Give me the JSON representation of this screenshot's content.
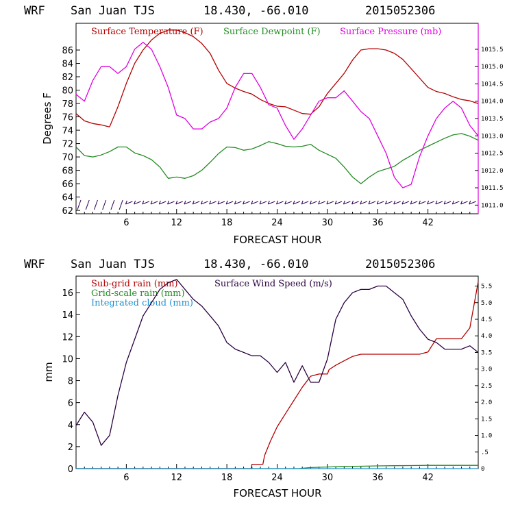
{
  "colors": {
    "temperature": "#b40000",
    "dewpoint": "#228b22",
    "pressure": "#e000e0",
    "wind_barb": "#3a0a5a",
    "subgrid_rain": "#b40000",
    "gridscale_rain": "#228b22",
    "cloud": "#1e8fd0",
    "wind_speed": "#2a0040"
  },
  "top": {
    "header": {
      "model": "WRF",
      "site": "San Juan TJS",
      "coords": "18.430, -66.010",
      "run": "2015052306"
    },
    "xlabel": "FORECAST HOUR",
    "ylabel": "Degrees F",
    "legend": {
      "temp": "Surface Temperature (F)",
      "dew": "Surface Dewpoint (F)",
      "pres": "Surface Pressure (mb)"
    }
  },
  "bottom": {
    "header": {
      "model": "WRF",
      "site": "San Juan TJS",
      "coords": "18.430, -66.010",
      "run": "2015052306"
    },
    "xlabel": "FORECAST HOUR",
    "ylabel": "mm",
    "legend": {
      "subgrid": "Sub-grid rain (mm)",
      "grid": "Grid-scale rain (mm)",
      "cloud": "Integrated cloud (mm)",
      "wind": "Surface Wind Speed (m/s)"
    }
  },
  "chart_data": [
    {
      "type": "line",
      "x_ticks": [
        "6",
        "12",
        "18",
        "24",
        "30",
        "36",
        "42"
      ],
      "xlim": [
        0,
        48
      ],
      "ylim": [
        61.5,
        90
      ],
      "y_ticks": [
        "62",
        "64",
        "66",
        "68",
        "70",
        "72",
        "74",
        "76",
        "78",
        "80",
        "82",
        "84",
        "86"
      ],
      "y2lim": [
        1010.75,
        1016.25
      ],
      "y2_ticks": [
        "1011.0",
        "1011.5",
        "1012.0",
        "1012.5",
        "1013.0",
        "1013.5",
        "1014.0",
        "1014.5",
        "1015.0",
        "1015.5"
      ],
      "series": [
        {
          "name": "Surface Temperature (F)",
          "axis": "left",
          "x": [
            0,
            1,
            2,
            3,
            4,
            5,
            6,
            7,
            8,
            9,
            10,
            11,
            12,
            13,
            14,
            15,
            16,
            17,
            18,
            19,
            20,
            21,
            22,
            23,
            24,
            25,
            26,
            27,
            28,
            29,
            30,
            31,
            32,
            33,
            34,
            35,
            36,
            37,
            38,
            39,
            40,
            41,
            42,
            43,
            44,
            45,
            46,
            47,
            48
          ],
          "y": [
            76.5,
            75.4,
            75.0,
            74.8,
            74.5,
            77.5,
            81.0,
            84.0,
            86.0,
            87.5,
            88.5,
            89.0,
            89.0,
            88.6,
            88.0,
            87.0,
            85.5,
            83.0,
            81.0,
            80.3,
            79.8,
            79.4,
            78.6,
            78.0,
            77.6,
            77.5,
            77.0,
            76.5,
            76.4,
            77.5,
            79.5,
            81.0,
            82.5,
            84.5,
            86.0,
            86.2,
            86.2,
            86.0,
            85.5,
            84.6,
            83.2,
            81.8,
            80.4,
            79.8,
            79.5,
            79.0,
            78.6,
            78.4,
            78.0
          ]
        },
        {
          "name": "Surface Dewpoint (F)",
          "axis": "left",
          "x": [
            0,
            1,
            2,
            3,
            4,
            5,
            6,
            7,
            8,
            9,
            10,
            11,
            12,
            13,
            14,
            15,
            16,
            17,
            18,
            19,
            20,
            21,
            22,
            23,
            24,
            25,
            26,
            27,
            28,
            29,
            30,
            31,
            32,
            33,
            34,
            35,
            36,
            37,
            38,
            39,
            40,
            41,
            42,
            43,
            44,
            45,
            46,
            47,
            48
          ],
          "y": [
            71.5,
            70.2,
            70.0,
            70.3,
            70.8,
            71.5,
            71.5,
            70.6,
            70.2,
            69.6,
            68.5,
            66.8,
            67.0,
            66.8,
            67.2,
            68.0,
            69.2,
            70.5,
            71.5,
            71.4,
            71.0,
            71.2,
            71.7,
            72.3,
            72.0,
            71.6,
            71.5,
            71.6,
            71.9,
            71.0,
            70.4,
            69.8,
            68.5,
            67.0,
            66.0,
            67.0,
            67.8,
            68.2,
            68.6,
            69.5,
            70.2,
            71.0,
            71.6,
            72.2,
            72.8,
            73.3,
            73.5,
            73.1,
            72.5
          ]
        },
        {
          "name": "Surface Pressure (mb)",
          "axis": "right",
          "x": [
            0,
            1,
            2,
            3,
            4,
            5,
            6,
            7,
            8,
            9,
            10,
            11,
            12,
            13,
            14,
            15,
            16,
            17,
            18,
            19,
            20,
            21,
            22,
            23,
            24,
            25,
            26,
            27,
            28,
            29,
            30,
            31,
            32,
            33,
            34,
            35,
            36,
            37,
            38,
            39,
            40,
            41,
            42,
            43,
            44,
            45,
            46,
            47,
            48
          ],
          "y": [
            1014.2,
            1014.0,
            1014.6,
            1015.0,
            1015.0,
            1014.8,
            1015.0,
            1015.5,
            1015.7,
            1015.5,
            1015.0,
            1014.4,
            1013.6,
            1013.5,
            1013.2,
            1013.2,
            1013.4,
            1013.5,
            1013.8,
            1014.4,
            1014.8,
            1014.8,
            1014.4,
            1013.9,
            1013.8,
            1013.3,
            1012.9,
            1013.2,
            1013.6,
            1014.0,
            1014.1,
            1014.1,
            1014.3,
            1014.0,
            1013.7,
            1013.5,
            1013.0,
            1012.5,
            1011.8,
            1011.5,
            1011.6,
            1012.4,
            1013.0,
            1013.5,
            1013.8,
            1014.0,
            1013.8,
            1013.3,
            1013.0
          ]
        }
      ],
      "wind_barbs_hours": [
        0,
        1,
        2,
        3,
        4,
        5,
        6,
        7,
        8,
        9,
        10,
        11,
        12,
        13,
        14,
        15,
        16,
        17,
        18,
        19,
        20,
        21,
        22,
        23,
        24,
        25,
        26,
        27,
        28,
        29,
        30,
        31,
        32,
        33,
        34,
        35,
        36,
        37,
        38,
        39,
        40,
        41,
        42,
        43,
        44,
        45,
        46,
        47
      ]
    },
    {
      "type": "line",
      "x_ticks": [
        "6",
        "12",
        "18",
        "24",
        "30",
        "36",
        "42"
      ],
      "xlim": [
        0,
        48
      ],
      "ylim": [
        0,
        17.5
      ],
      "y_ticks": [
        "0",
        "2",
        "4",
        "6",
        "8",
        "10",
        "12",
        "14",
        "16"
      ],
      "y2lim": [
        0,
        5.8
      ],
      "y2_ticks": [
        "0",
        ".5",
        "1.0",
        "1.5",
        "2.0",
        "2.5",
        "3.0",
        "3.5",
        "4.0",
        "4.5",
        "5.0",
        "5.5"
      ],
      "series": [
        {
          "name": "Sub-grid rain (mm)",
          "axis": "left",
          "x": [
            0,
            20.9,
            21,
            22.3,
            22.5,
            23.2,
            24,
            25,
            26,
            27,
            28,
            29,
            30,
            30.2,
            31,
            32,
            33,
            34,
            35,
            36,
            37,
            38,
            39,
            40,
            41,
            42,
            43,
            44,
            45,
            46,
            47,
            48
          ],
          "y": [
            0,
            0,
            0.4,
            0.4,
            1.2,
            2.5,
            3.8,
            5.0,
            6.2,
            7.4,
            8.4,
            8.6,
            8.6,
            9.0,
            9.4,
            9.8,
            10.2,
            10.4,
            10.4,
            10.4,
            10.4,
            10.4,
            10.4,
            10.4,
            10.4,
            10.6,
            11.8,
            11.8,
            11.8,
            11.8,
            12.8,
            17.0
          ]
        },
        {
          "name": "Grid-scale rain (mm)",
          "axis": "left",
          "x": [
            0,
            26.5,
            28,
            30,
            32,
            34,
            36,
            38,
            40,
            42,
            44,
            46,
            48
          ],
          "y": [
            0,
            0,
            0.1,
            0.15,
            0.2,
            0.22,
            0.25,
            0.27,
            0.28,
            0.3,
            0.3,
            0.3,
            0.3
          ]
        },
        {
          "name": "Integrated cloud (mm)",
          "axis": "left",
          "x": [
            0,
            48
          ],
          "y": [
            0,
            0
          ]
        },
        {
          "name": "Surface Wind Speed (m/s)",
          "axis": "right",
          "x": [
            0,
            1,
            2,
            3,
            4,
            5,
            6,
            7,
            8,
            9,
            10,
            11,
            12,
            13,
            14,
            15,
            16,
            17,
            18,
            19,
            20,
            21,
            22,
            23,
            24,
            25,
            26,
            27,
            28,
            29,
            30,
            31,
            32,
            33,
            34,
            35,
            36,
            37,
            38,
            39,
            40,
            41,
            42,
            43,
            44,
            45,
            46,
            47,
            48
          ],
          "y": [
            1.3,
            1.7,
            1.4,
            0.7,
            1.0,
            2.2,
            3.2,
            3.9,
            4.6,
            5.0,
            5.4,
            5.6,
            5.7,
            5.4,
            5.1,
            4.9,
            4.6,
            4.3,
            3.8,
            3.6,
            3.5,
            3.4,
            3.4,
            3.2,
            2.9,
            3.2,
            2.6,
            3.1,
            2.6,
            2.6,
            3.3,
            4.5,
            5.0,
            5.3,
            5.4,
            5.4,
            5.5,
            5.5,
            5.3,
            5.1,
            4.6,
            4.2,
            3.9,
            3.8,
            3.6,
            3.6,
            3.6,
            3.7,
            3.5
          ]
        }
      ]
    }
  ]
}
